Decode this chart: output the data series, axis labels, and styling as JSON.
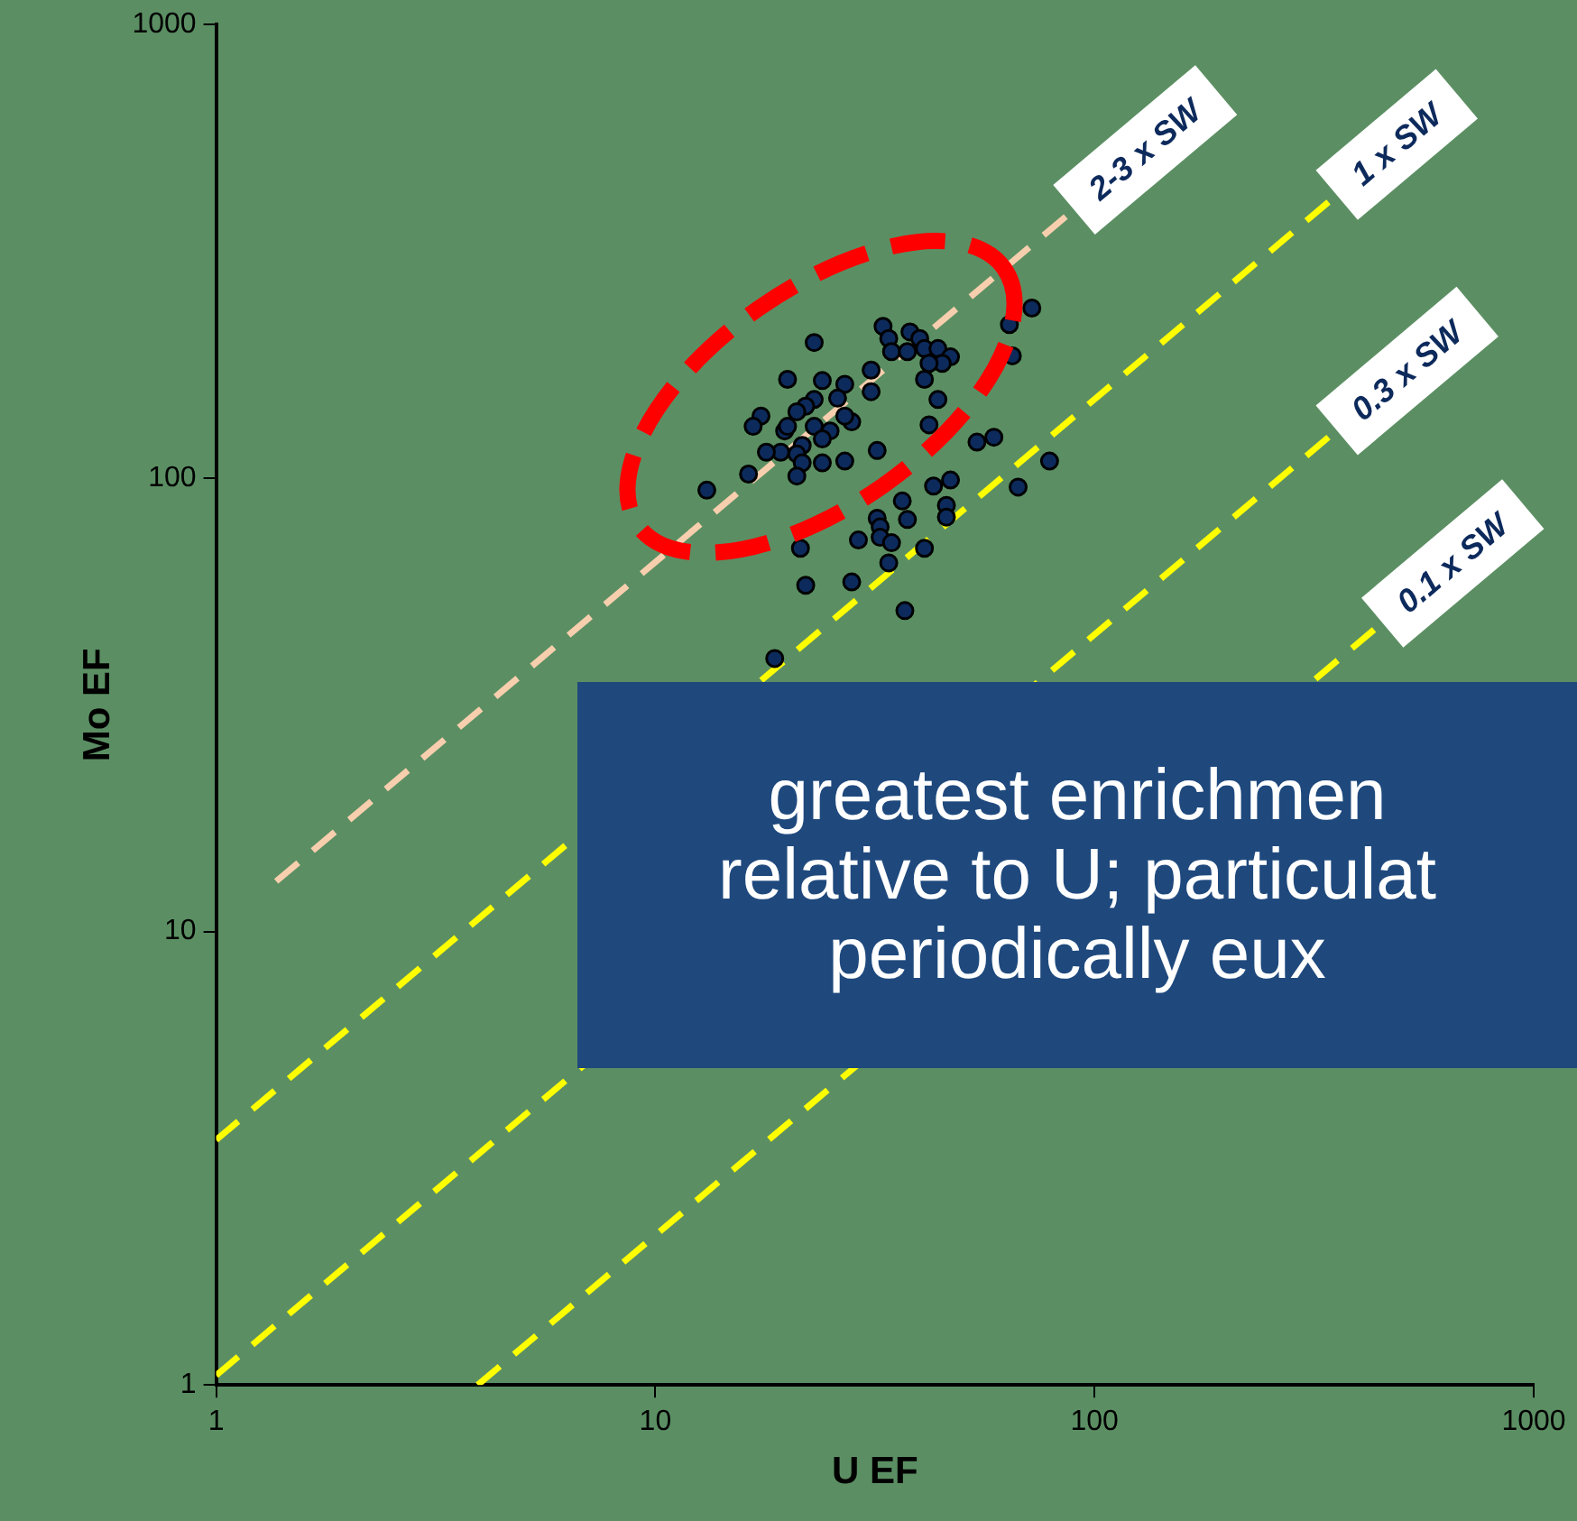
{
  "chart_data": {
    "type": "scatter",
    "xlabel": "U EF",
    "ylabel": "Mo EF",
    "log": "xy",
    "xlim": [
      1,
      1000
    ],
    "ylim": [
      1,
      1000
    ],
    "xticks": [
      1,
      10,
      100,
      1000
    ],
    "yticks": [
      1,
      10,
      100,
      1000
    ],
    "grid": false,
    "legend": false,
    "series": [
      {
        "type": "scatter",
        "marker": "circle",
        "color": "#0d2a5c",
        "x": [
          72,
          64,
          33,
          38,
          34,
          34.5,
          37.5,
          40,
          41,
          44,
          47,
          45,
          42,
          65,
          23,
          20,
          24,
          31,
          31,
          41,
          44,
          42,
          27,
          26,
          23,
          22,
          21,
          17.4,
          16.7,
          19.7,
          20,
          23,
          25,
          28,
          27,
          24,
          21.6,
          19.3,
          17.9,
          21,
          21.6,
          24,
          21,
          27,
          32,
          16.3,
          13.1,
          54,
          59,
          79,
          67,
          43,
          47,
          36.5,
          37.5,
          46,
          46,
          32,
          32.5,
          32.5,
          34.5,
          29,
          41,
          34,
          21.4,
          22,
          28,
          37,
          18.7
        ],
        "values": [
          237,
          218,
          216,
          210,
          203,
          190,
          190,
          203,
          193,
          193,
          185,
          179,
          179,
          186,
          199,
          165,
          164,
          173,
          155,
          165,
          149,
          131,
          161,
          150,
          149,
          144,
          140,
          137,
          130,
          127,
          130,
          130,
          127,
          133,
          137,
          122,
          118,
          114,
          114,
          113,
          108,
          108,
          101,
          109,
          115,
          102,
          94,
          120,
          123,
          109,
          95.5,
          96,
          99,
          89,
          81,
          87,
          82,
          81.5,
          78,
          74,
          72,
          73,
          70,
          65,
          70,
          58,
          59,
          51,
          40
        ]
      },
      {
        "type": "line",
        "marker": "none",
        "name": "2-3 x SW",
        "color": "#f8cfae",
        "line_style": "dashed",
        "x": [
          1.37,
          86
        ],
        "values": [
          12.9,
          377
        ]
      },
      {
        "type": "line",
        "marker": "none",
        "name": "1 x SW",
        "color": "#ffff00",
        "line_style": "dashed",
        "x": [
          1,
          341
        ],
        "values": [
          3.47,
          406
        ]
      },
      {
        "type": "line",
        "marker": "none",
        "name": "0.3 x SW",
        "color": "#ffff00",
        "line_style": "dashed",
        "x": [
          1,
          341
        ],
        "values": [
          1.05,
          123
        ]
      },
      {
        "type": "line",
        "marker": "none",
        "name": "0.1 x SW",
        "color": "#ffff00",
        "line_style": "dashed",
        "x": [
          3.94,
          433
        ],
        "values": [
          1,
          46.3
        ]
      }
    ],
    "annotations": [
      "greatest enrichmen\nrelative to U; particulat\nperiodically eux"
    ]
  }
}
